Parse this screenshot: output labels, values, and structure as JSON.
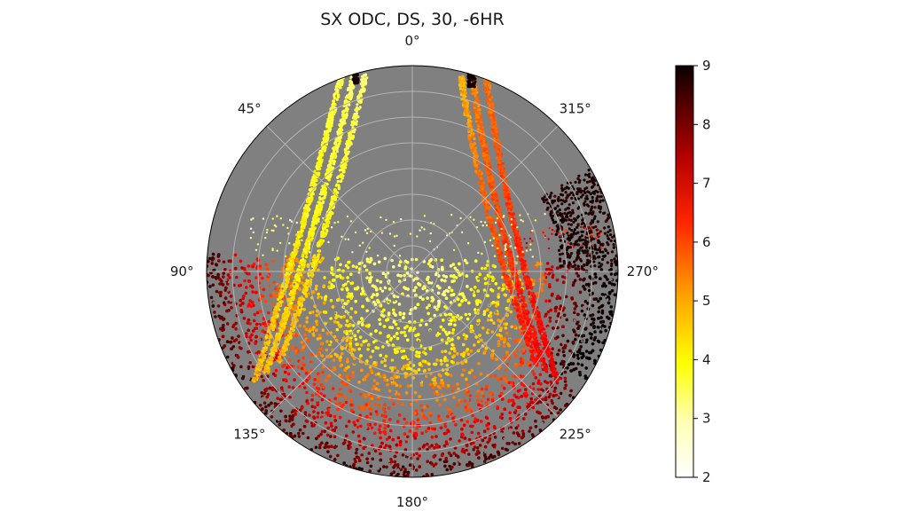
{
  "chart_data": {
    "type": "scatter",
    "projection": "polar",
    "title": "SX ODC, DS, 30, -6HR",
    "theta_zero_location": "top",
    "theta_direction": "counterclockwise",
    "angle_labels": [
      "0°",
      "45°",
      "90°",
      "135°",
      "180°",
      "225°",
      "270°",
      "315°"
    ],
    "angle_values_deg": [
      0,
      45,
      90,
      135,
      180,
      225,
      270,
      315
    ],
    "radial_gridline_count": 7,
    "background_color": "#808080",
    "grid_color": "#b4b4b4",
    "colormap": "hot_r",
    "colorbar": {
      "min": 2,
      "max": 9,
      "ticks": [
        "2",
        "3",
        "4",
        "5",
        "6",
        "7",
        "8",
        "9"
      ],
      "orientation": "vertical",
      "placement": "right"
    },
    "value_range": [
      2,
      9
    ],
    "regions": [
      {
        "feature": "dense lower-half field",
        "theta_deg_range": [
          90,
          270
        ],
        "value_inner": 3,
        "value_outer": 8.5
      },
      {
        "feature": "dark band",
        "theta_deg_range": [
          225,
          295
        ],
        "value": 9
      },
      {
        "feature": "left arc track",
        "theta_deg_range": [
          10,
          150
        ],
        "value": 3.5
      },
      {
        "feature": "right arc track",
        "theta_deg_range": [
          345,
          220
        ],
        "value": 5.5
      },
      {
        "feature": "sparse upper dots",
        "theta_deg_range": [
          290,
          70
        ],
        "value": 2.8
      }
    ]
  }
}
